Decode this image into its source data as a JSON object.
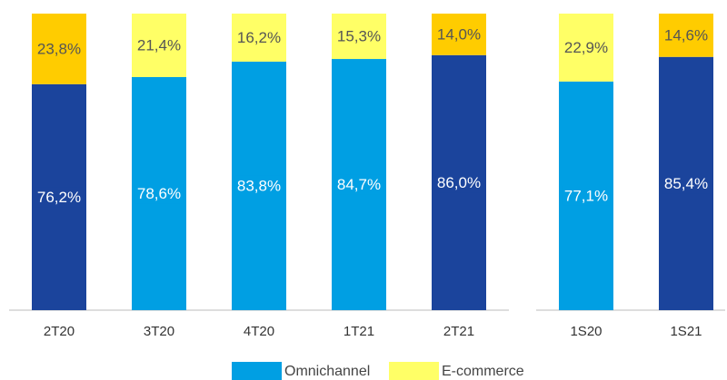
{
  "chart_data": [
    {
      "type": "bar",
      "stacked": true,
      "ylim": [
        0,
        100
      ],
      "categories": [
        "2T20",
        "3T20",
        "4T20",
        "1T21",
        "2T21"
      ],
      "series": [
        {
          "name": "Omnichannel",
          "color": "#009fe3",
          "colors": [
            "#1b449c",
            "#009fe3",
            "#009fe3",
            "#009fe3",
            "#1b449c"
          ],
          "values": [
            76.2,
            78.6,
            83.8,
            84.7,
            86.0
          ],
          "value_labels": [
            "76,2%",
            "78,6%",
            "83,8%",
            "84,7%",
            "86,0%"
          ]
        },
        {
          "name": "E-commerce",
          "color": "#ffff66",
          "colors": [
            "#ffcc00",
            "#ffff66",
            "#ffff66",
            "#ffff66",
            "#ffcc00"
          ],
          "values": [
            23.8,
            21.4,
            16.2,
            15.3,
            14.0
          ],
          "value_labels": [
            "23,8%",
            "21,4%",
            "16,2%",
            "15,3%",
            "14,0%"
          ]
        }
      ]
    },
    {
      "type": "bar",
      "stacked": true,
      "ylim": [
        0,
        100
      ],
      "categories": [
        "1S20",
        "1S21"
      ],
      "series": [
        {
          "name": "Omnichannel",
          "color": "#009fe3",
          "colors": [
            "#009fe3",
            "#1b449c"
          ],
          "values": [
            77.1,
            85.4
          ],
          "value_labels": [
            "77,1%",
            "85,4%"
          ]
        },
        {
          "name": "E-commerce",
          "color": "#ffff66",
          "colors": [
            "#ffff66",
            "#ffcc00"
          ],
          "values": [
            22.9,
            14.6
          ],
          "value_labels": [
            "22,9%",
            "14,6%"
          ]
        }
      ]
    }
  ]
}
